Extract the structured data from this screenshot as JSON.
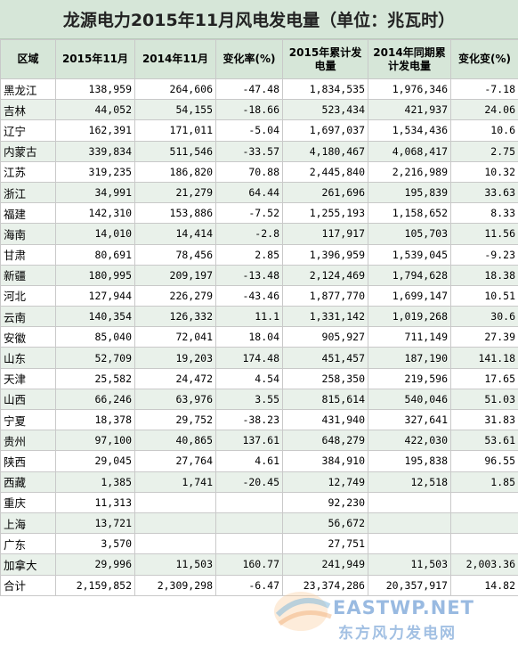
{
  "title": "龙源电力2015年11月风电发电量（单位：兆瓦时）",
  "headers": [
    "区域",
    "2015年11月",
    "2014年11月",
    "变化率(%)",
    "2015年累计发电量",
    "2014年同期累计发电量",
    "变化变(%)"
  ],
  "rows": [
    [
      "黑龙江",
      "138,959",
      "264,606",
      "-47.48",
      "1,834,535",
      "1,976,346",
      "-7.18"
    ],
    [
      "吉林",
      "44,052",
      "54,155",
      "-18.66",
      "523,434",
      "421,937",
      "24.06"
    ],
    [
      "辽宁",
      "162,391",
      "171,011",
      "-5.04",
      "1,697,037",
      "1,534,436",
      "10.6"
    ],
    [
      "内蒙古",
      "339,834",
      "511,546",
      "-33.57",
      "4,180,467",
      "4,068,417",
      "2.75"
    ],
    [
      "江苏",
      "319,235",
      "186,820",
      "70.88",
      "2,445,840",
      "2,216,989",
      "10.32"
    ],
    [
      "浙江",
      "34,991",
      "21,279",
      "64.44",
      "261,696",
      "195,839",
      "33.63"
    ],
    [
      "福建",
      "142,310",
      "153,886",
      "-7.52",
      "1,255,193",
      "1,158,652",
      "8.33"
    ],
    [
      "海南",
      "14,010",
      "14,414",
      "-2.8",
      "117,917",
      "105,703",
      "11.56"
    ],
    [
      "甘肃",
      "80,691",
      "78,456",
      "2.85",
      "1,396,959",
      "1,539,045",
      "-9.23"
    ],
    [
      "新疆",
      "180,995",
      "209,197",
      "-13.48",
      "2,124,469",
      "1,794,628",
      "18.38"
    ],
    [
      "河北",
      "127,944",
      "226,279",
      "-43.46",
      "1,877,770",
      "1,699,147",
      "10.51"
    ],
    [
      "云南",
      "140,354",
      "126,332",
      "11.1",
      "1,331,142",
      "1,019,268",
      "30.6"
    ],
    [
      "安徽",
      "85,040",
      "72,041",
      "18.04",
      "905,927",
      "711,149",
      "27.39"
    ],
    [
      "山东",
      "52,709",
      "19,203",
      "174.48",
      "451,457",
      "187,190",
      "141.18"
    ],
    [
      "天津",
      "25,582",
      "24,472",
      "4.54",
      "258,350",
      "219,596",
      "17.65"
    ],
    [
      "山西",
      "66,246",
      "63,976",
      "3.55",
      "815,614",
      "540,046",
      "51.03"
    ],
    [
      "宁夏",
      "18,378",
      "29,752",
      "-38.23",
      "431,940",
      "327,641",
      "31.83"
    ],
    [
      "贵州",
      "97,100",
      "40,865",
      "137.61",
      "648,279",
      "422,030",
      "53.61"
    ],
    [
      "陕西",
      "29,045",
      "27,764",
      "4.61",
      "384,910",
      "195,838",
      "96.55"
    ],
    [
      "西藏",
      "1,385",
      "1,741",
      "-20.45",
      "12,749",
      "12,518",
      "1.85"
    ],
    [
      "重庆",
      "11,313",
      "",
      "",
      "92,230",
      "",
      ""
    ],
    [
      "上海",
      "13,721",
      "",
      "",
      "56,672",
      "",
      ""
    ],
    [
      "广东",
      "3,570",
      "",
      "",
      "27,751",
      "",
      ""
    ],
    [
      "加拿大",
      "29,996",
      "11,503",
      "160.77",
      "241,949",
      "11,503",
      "2,003.36"
    ],
    [
      "合计",
      "2,159,852",
      "2,309,298",
      "-6.47",
      "23,374,286",
      "20,357,917",
      "14.82"
    ]
  ],
  "watermark": {
    "en": "EASTWP.NET",
    "cn": "东方风力发电网"
  }
}
